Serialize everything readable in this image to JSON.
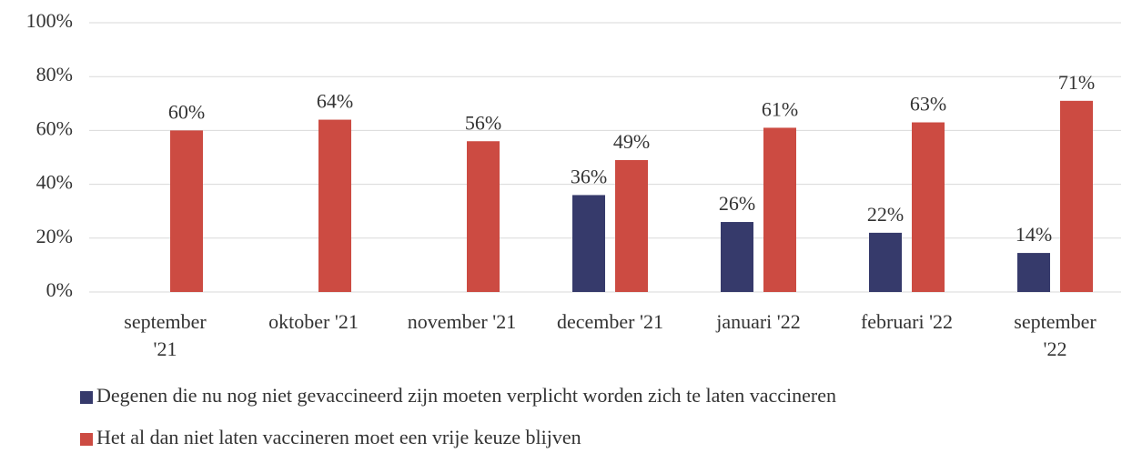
{
  "chart_data": {
    "type": "bar",
    "categories": [
      "september '21",
      "oktober '21",
      "november '21",
      "december '21",
      "januari '22",
      "februari '22",
      "september '22"
    ],
    "series": [
      {
        "name": "Degenen die nu nog niet gevaccineerd zijn moeten verplicht worden zich te laten vaccineren",
        "color": "#363a6b",
        "values": [
          null,
          null,
          null,
          36,
          26,
          22,
          14.5
        ],
        "value_labels": [
          null,
          null,
          null,
          "36%",
          "26%",
          "22%",
          "14%"
        ]
      },
      {
        "name": "Het al dan niet laten vaccineren moet een vrije keuze blijven",
        "color": "#cc4b42",
        "values": [
          60,
          64,
          56,
          49,
          61,
          63,
          71
        ],
        "value_labels": [
          "60%",
          "64%",
          "56%",
          "49%",
          "61%",
          "63%",
          "71%"
        ]
      }
    ],
    "ylim": [
      0,
      100
    ],
    "yticks": [
      {
        "value": 0,
        "label": "0%"
      },
      {
        "value": 20,
        "label": "20%"
      },
      {
        "value": 40,
        "label": "40%"
      },
      {
        "value": 60,
        "label": "60%"
      },
      {
        "value": 80,
        "label": "80%"
      },
      {
        "value": 100,
        "label": "100%"
      }
    ],
    "grid": true,
    "legend": "bottom"
  }
}
